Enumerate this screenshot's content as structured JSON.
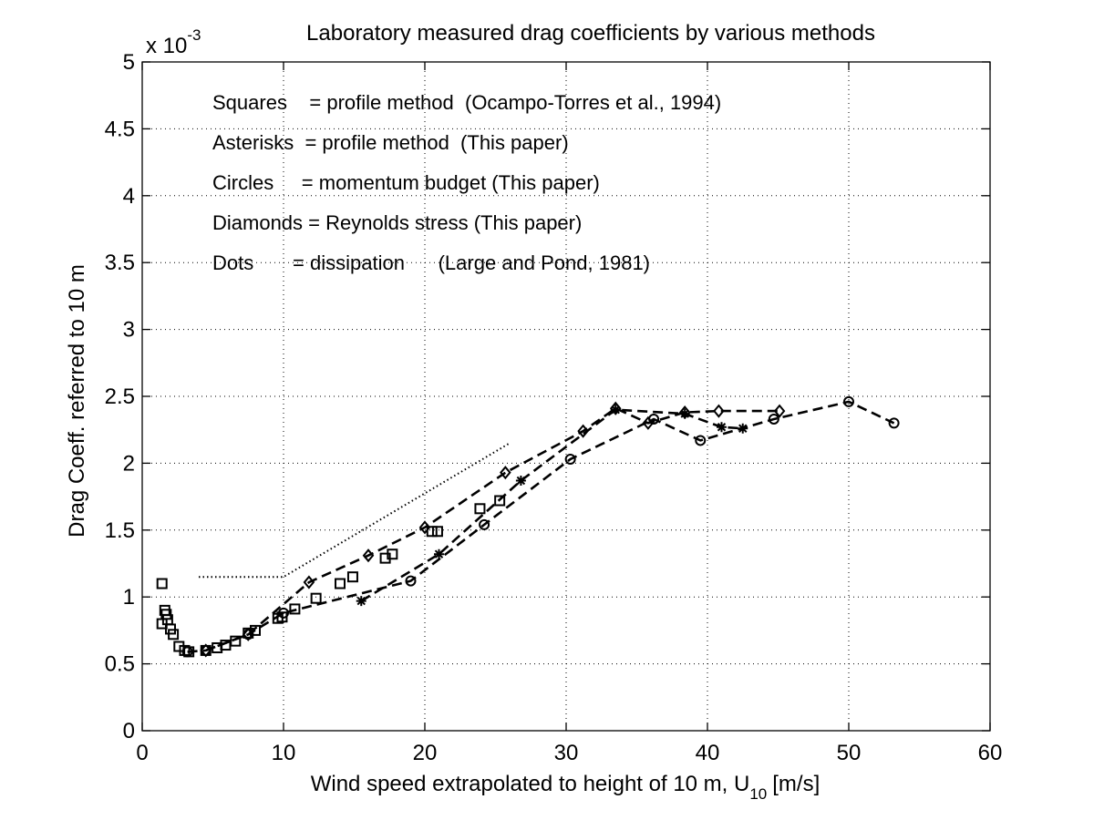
{
  "chart_data": {
    "type": "scatter",
    "title": "Laboratory measured drag coefficients by various methods",
    "xlabel": "Wind speed extrapolated to height of 10 m, U",
    "xlabel_subscript": "10",
    "xlabel_unit": "[m/s]",
    "ylabel": "Drag Coeff. referred to 10 m",
    "y_multiplier_base": "x 10",
    "y_multiplier_exp": "-3",
    "xlim": [
      0,
      60
    ],
    "ylim": [
      0,
      5
    ],
    "xticks": [
      0,
      10,
      20,
      30,
      40,
      50,
      60
    ],
    "yticks": [
      0,
      0.5,
      1,
      1.5,
      2,
      2.5,
      3,
      3.5,
      4,
      4.5,
      5
    ],
    "grid": true,
    "annotations": [
      "Squares    = profile method  (Ocampo-Torres et al., 1994)",
      "Asterisks  = profile method  (This paper)",
      "Circles     = momentum budget (This paper)",
      "Diamonds = Reynolds stress (This paper)",
      "Dots       = dissipation      (Large and Pond, 1981)"
    ],
    "series": [
      {
        "marker": "square",
        "line": "none",
        "points": [
          [
            1.4,
            1.1
          ],
          [
            1.4,
            0.8
          ],
          [
            1.6,
            0.9
          ],
          [
            1.7,
            0.87
          ],
          [
            1.8,
            0.83
          ],
          [
            2.0,
            0.76
          ],
          [
            2.2,
            0.72
          ],
          [
            2.6,
            0.63
          ],
          [
            3.0,
            0.6
          ],
          [
            3.3,
            0.59
          ],
          [
            4.5,
            0.6
          ],
          [
            5.3,
            0.62
          ],
          [
            5.9,
            0.64
          ],
          [
            6.6,
            0.67
          ],
          [
            7.5,
            0.73
          ],
          [
            8.0,
            0.75
          ],
          [
            9.6,
            0.84
          ],
          [
            9.9,
            0.85
          ],
          [
            10.8,
            0.91
          ],
          [
            12.3,
            0.99
          ],
          [
            14.0,
            1.1
          ],
          [
            14.9,
            1.15
          ],
          [
            17.2,
            1.29
          ],
          [
            17.7,
            1.32
          ],
          [
            20.5,
            1.49
          ],
          [
            20.9,
            1.49
          ],
          [
            23.9,
            1.66
          ],
          [
            25.3,
            1.72
          ]
        ]
      },
      {
        "marker": "asterisk",
        "line": "dashed",
        "points": [
          [
            15.5,
            0.97
          ],
          [
            21.0,
            1.32
          ],
          [
            26.8,
            1.87
          ],
          [
            33.5,
            2.4
          ],
          [
            38.4,
            2.37
          ],
          [
            41.0,
            2.27
          ],
          [
            42.5,
            2.26
          ]
        ]
      },
      {
        "marker": "circle",
        "line": "dashed",
        "points": [
          [
            3.2,
            0.59
          ],
          [
            4.5,
            0.6
          ],
          [
            7.5,
            0.72
          ],
          [
            10.0,
            0.88
          ],
          [
            19.0,
            1.12
          ],
          [
            24.2,
            1.54
          ],
          [
            30.3,
            2.03
          ],
          [
            36.2,
            2.33
          ],
          [
            39.5,
            2.17
          ],
          [
            44.7,
            2.33
          ],
          [
            50.0,
            2.46
          ],
          [
            53.2,
            2.3
          ]
        ]
      },
      {
        "marker": "diamond",
        "line": "dashed",
        "points": [
          [
            4.5,
            0.6
          ],
          [
            7.5,
            0.72
          ],
          [
            11.8,
            1.11
          ],
          [
            16.0,
            1.31
          ],
          [
            20.0,
            1.52
          ],
          [
            25.7,
            1.93
          ],
          [
            31.2,
            2.24
          ],
          [
            33.5,
            2.41
          ],
          [
            35.8,
            2.3
          ],
          [
            38.4,
            2.38
          ],
          [
            40.8,
            2.39
          ],
          [
            45.1,
            2.39
          ]
        ]
      },
      {
        "marker": "none",
        "line": "dotted",
        "points": [
          [
            4.0,
            1.15
          ],
          [
            10.0,
            1.15
          ],
          [
            26.0,
            2.15
          ]
        ]
      }
    ]
  }
}
